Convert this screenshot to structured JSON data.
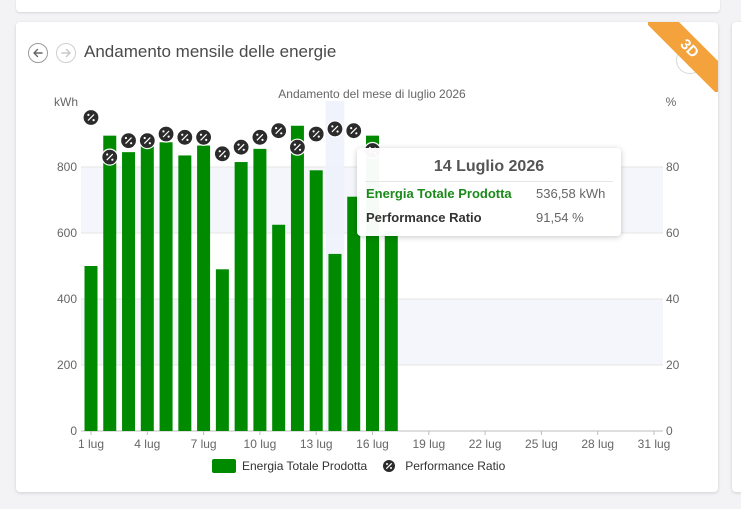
{
  "card": {
    "title": "Andamento mensile delle energie",
    "ribbon": "3D"
  },
  "icons": {
    "back": "arrow-left-icon",
    "forward": "arrow-right-icon",
    "menu": "more-vertical-icon",
    "percent": "percent-icon"
  },
  "colors": {
    "bar": "#008a00",
    "pr_marker": "#2b2b2b",
    "tooltip_energy": "#1a8a1a",
    "ribbon": "#f3a23c",
    "highlight_band": "#eef2fb"
  },
  "tooltip": {
    "date": "14 Luglio 2026",
    "energy_label": "Energia Totale Prodotta",
    "energy_value": "536,58 kWh",
    "pr_label": "Performance Ratio",
    "pr_value": "91,54 %"
  },
  "legend": {
    "energy": "Energia Totale Prodotta",
    "pr": "Performance Ratio"
  },
  "chart_data": {
    "type": "bar",
    "title": "Andamento del mese di luglio 2026",
    "y_left_unit": "kWh",
    "y_right_unit": "%",
    "ylim_left": [
      0,
      1000
    ],
    "ylim_right": [
      0,
      100
    ],
    "y_left_ticks": [
      "0",
      "200",
      "400",
      "600",
      "800"
    ],
    "y_right_ticks": [
      "0",
      "20",
      "40",
      "60",
      "80"
    ],
    "x_tick_labels": [
      "1 lug",
      "4 lug",
      "7 lug",
      "10 lug",
      "13 lug",
      "16 lug",
      "19 lug",
      "22 lug",
      "25 lug",
      "28 lug",
      "31 lug"
    ],
    "x_tick_days": [
      1,
      4,
      7,
      10,
      13,
      16,
      19,
      22,
      25,
      28,
      31
    ],
    "days_in_month": 31,
    "grid": true,
    "legend_position": "bottom",
    "highlighted_day": 14,
    "series": [
      {
        "name": "Energia Totale Prodotta",
        "type": "bar",
        "axis": "left",
        "x": [
          1,
          2,
          3,
          4,
          5,
          6,
          7,
          8,
          9,
          10,
          11,
          12,
          13,
          14,
          15,
          16,
          17
        ],
        "values": [
          500,
          895,
          845,
          895,
          875,
          835,
          865,
          490,
          815,
          855,
          625,
          925,
          790,
          536.58,
          710,
          895,
          605
        ]
      },
      {
        "name": "Performance Ratio",
        "type": "scatter",
        "axis": "right",
        "x": [
          1,
          2,
          3,
          4,
          5,
          6,
          7,
          8,
          9,
          10,
          11,
          12,
          13,
          14,
          15,
          16
        ],
        "values": [
          95,
          83,
          88,
          88,
          90,
          89,
          89,
          84,
          86,
          89,
          91,
          86,
          90,
          91.54,
          91,
          85
        ]
      }
    ]
  }
}
